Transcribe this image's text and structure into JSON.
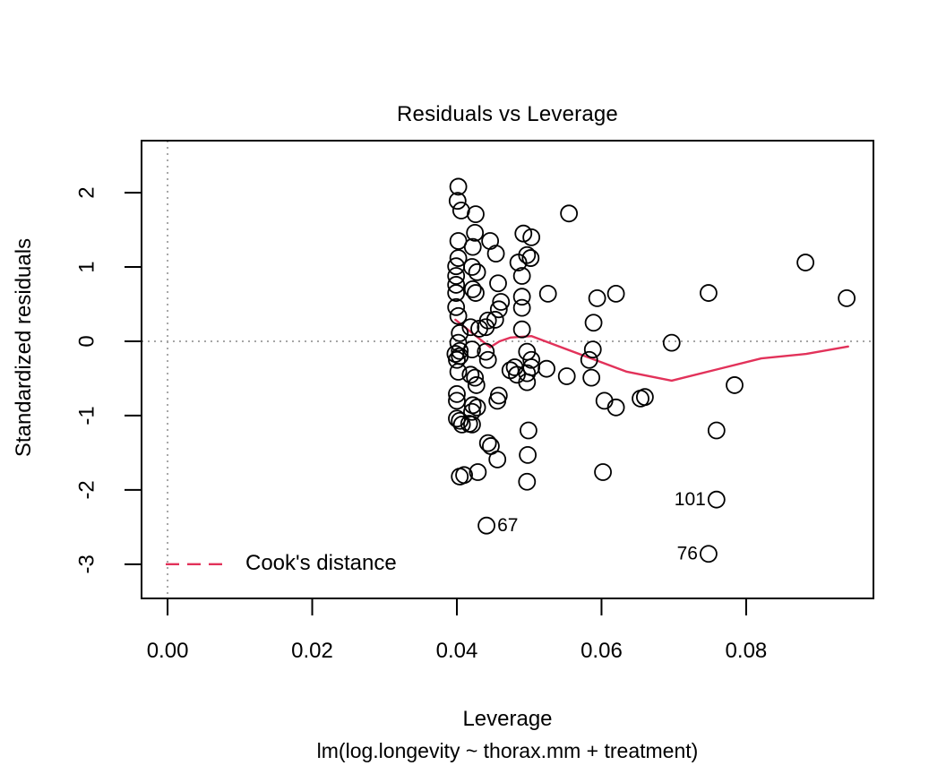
{
  "title": "Residuals vs Leverage",
  "axes": {
    "x_label": "Leverage",
    "x_sub_label": "lm(log.longevity ~ thorax.mm + treatment)",
    "y_label": "Standardized residuals"
  },
  "legend": {
    "label": "Cook's distance",
    "line_color": "#e2325a",
    "line_style": "dashed"
  },
  "chart_data": {
    "type": "scatter",
    "title": "Residuals vs Leverage",
    "xlabel": "Leverage",
    "ylabel": "Standardized residuals",
    "model_caption": "lm(log.longevity ~ thorax.mm + treatment)",
    "xlim": [
      -0.0036,
      0.0976
    ],
    "ylim": [
      -3.46,
      2.7
    ],
    "grid": false,
    "legend_position": "bottom-left-inside",
    "x_ticks": [
      {
        "value": 0.0,
        "label": "0.00"
      },
      {
        "value": 0.02,
        "label": "0.02"
      },
      {
        "value": 0.04,
        "label": "0.04"
      },
      {
        "value": 0.06,
        "label": "0.06"
      },
      {
        "value": 0.08,
        "label": "0.08"
      }
    ],
    "y_ticks": [
      {
        "value": 2,
        "label": "2"
      },
      {
        "value": 1,
        "label": "1"
      },
      {
        "value": 0,
        "label": "0"
      },
      {
        "value": -1,
        "label": "-1"
      },
      {
        "value": -2,
        "label": "-2"
      },
      {
        "value": -3,
        "label": "-3"
      }
    ],
    "reference_lines": {
      "vertical_at_x": 0,
      "horizontal_at_y": 0
    },
    "colors": {
      "points": "#000000",
      "smoother": "#e2325a",
      "reference": "#a6a6a6",
      "frame": "#000000"
    },
    "points": [
      [
        0.0402,
        2.08
      ],
      [
        0.0401,
        1.89
      ],
      [
        0.0406,
        1.76
      ],
      [
        0.0426,
        1.71
      ],
      [
        0.0555,
        1.72
      ],
      [
        0.0425,
        1.46
      ],
      [
        0.0402,
        1.35
      ],
      [
        0.0422,
        1.27
      ],
      [
        0.0446,
        1.35
      ],
      [
        0.0492,
        1.45
      ],
      [
        0.0503,
        1.4
      ],
      [
        0.0402,
        1.12
      ],
      [
        0.0399,
        1.01
      ],
      [
        0.0421,
        1.0
      ],
      [
        0.0428,
        0.93
      ],
      [
        0.0454,
        1.18
      ],
      [
        0.0497,
        1.16
      ],
      [
        0.0502,
        1.12
      ],
      [
        0.0485,
        1.06
      ],
      [
        0.0399,
        0.88
      ],
      [
        0.049,
        0.88
      ],
      [
        0.0399,
        0.76
      ],
      [
        0.0422,
        0.7
      ],
      [
        0.0426,
        0.65
      ],
      [
        0.0457,
        0.78
      ],
      [
        0.0399,
        0.65
      ],
      [
        0.049,
        0.6
      ],
      [
        0.0526,
        0.64
      ],
      [
        0.0461,
        0.53
      ],
      [
        0.049,
        0.45
      ],
      [
        0.0399,
        0.46
      ],
      [
        0.0594,
        0.58
      ],
      [
        0.062,
        0.64
      ],
      [
        0.0748,
        0.65
      ],
      [
        0.0882,
        1.06
      ],
      [
        0.0939,
        0.58
      ],
      [
        0.0402,
        0.34
      ],
      [
        0.0458,
        0.43
      ],
      [
        0.0443,
        0.28
      ],
      [
        0.0453,
        0.29
      ],
      [
        0.0419,
        0.19
      ],
      [
        0.0431,
        0.17
      ],
      [
        0.044,
        0.19
      ],
      [
        0.0404,
        0.11
      ],
      [
        0.049,
        0.16
      ],
      [
        0.0402,
        -0.02
      ],
      [
        0.0404,
        -0.13
      ],
      [
        0.0398,
        -0.17
      ],
      [
        0.0404,
        -0.2
      ],
      [
        0.0421,
        -0.11
      ],
      [
        0.04,
        -0.25
      ],
      [
        0.044,
        -0.14
      ],
      [
        0.0443,
        -0.25
      ],
      [
        0.0402,
        -0.41
      ],
      [
        0.0419,
        -0.45
      ],
      [
        0.0497,
        -0.14
      ],
      [
        0.0503,
        -0.25
      ],
      [
        0.048,
        -0.35
      ],
      [
        0.0474,
        -0.39
      ],
      [
        0.0483,
        -0.45
      ],
      [
        0.0503,
        -0.35
      ],
      [
        0.0497,
        -0.43
      ],
      [
        0.0497,
        -0.55
      ],
      [
        0.0524,
        -0.37
      ],
      [
        0.0552,
        -0.47
      ],
      [
        0.0425,
        -0.49
      ],
      [
        0.0427,
        -0.59
      ],
      [
        0.0589,
        0.25
      ],
      [
        0.0588,
        -0.11
      ],
      [
        0.0583,
        -0.25
      ],
      [
        0.0586,
        -0.49
      ],
      [
        0.0604,
        -0.8
      ],
      [
        0.062,
        -0.89
      ],
      [
        0.0654,
        -0.77
      ],
      [
        0.066,
        -0.75
      ],
      [
        0.0697,
        -0.02
      ],
      [
        0.0784,
        -0.59
      ],
      [
        0.04,
        -0.71
      ],
      [
        0.04,
        -0.8
      ],
      [
        0.0422,
        -0.86
      ],
      [
        0.0428,
        -0.89
      ],
      [
        0.0421,
        -0.95
      ],
      [
        0.0458,
        -0.73
      ],
      [
        0.0456,
        -0.8
      ],
      [
        0.0499,
        -1.2
      ],
      [
        0.04,
        -1.04
      ],
      [
        0.0404,
        -1.07
      ],
      [
        0.0407,
        -1.12
      ],
      [
        0.0417,
        -1.11
      ],
      [
        0.0421,
        -1.12
      ],
      [
        0.0443,
        -1.37
      ],
      [
        0.0447,
        -1.41
      ],
      [
        0.0456,
        -1.59
      ],
      [
        0.0498,
        -1.53
      ],
      [
        0.0497,
        -1.89
      ],
      [
        0.0404,
        -1.82
      ],
      [
        0.041,
        -1.8
      ],
      [
        0.0429,
        -1.76
      ],
      [
        0.0602,
        -1.76
      ],
      [
        0.0759,
        -1.2
      ]
    ],
    "labeled_points": [
      {
        "label": "67",
        "x": 0.0441,
        "y": -2.48,
        "label_side": "right"
      },
      {
        "label": "101",
        "x": 0.0759,
        "y": -2.13,
        "label_side": "left"
      },
      {
        "label": "76",
        "x": 0.0748,
        "y": -2.86,
        "label_side": "left"
      }
    ],
    "smoother": [
      [
        0.0398,
        0.29
      ],
      [
        0.0446,
        -0.08
      ],
      [
        0.0459,
        0.0
      ],
      [
        0.0474,
        0.05
      ],
      [
        0.0503,
        0.07
      ],
      [
        0.0635,
        -0.41
      ],
      [
        0.0697,
        -0.53
      ],
      [
        0.0759,
        -0.38
      ],
      [
        0.0821,
        -0.23
      ],
      [
        0.0883,
        -0.17
      ],
      [
        0.0941,
        -0.07
      ]
    ]
  }
}
